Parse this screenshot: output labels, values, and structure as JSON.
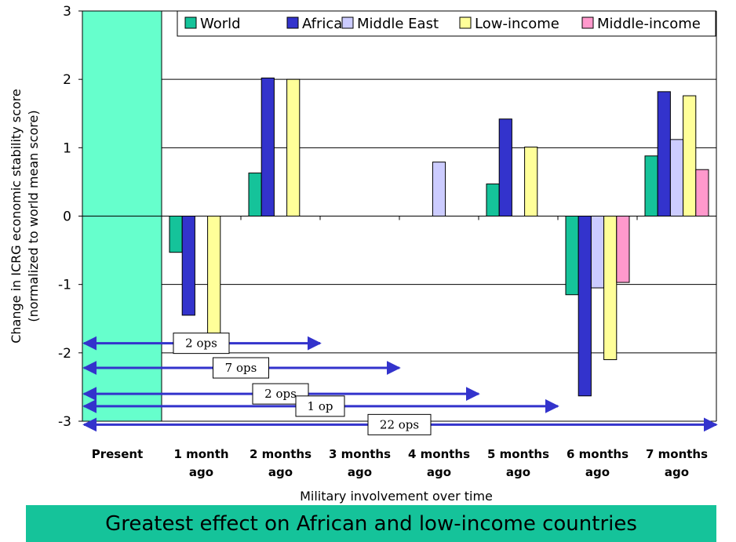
{
  "chart_data": {
    "type": "bar",
    "title": "",
    "xlabel": "Military involvement over time",
    "ylabel": "Change in ICRG economic stability score (normalized to world mean score)",
    "ylabel_lines": [
      "Change in ICRG economic stability score",
      "(normalized to world mean score)"
    ],
    "ylim": [
      -3,
      3
    ],
    "yticks": [
      "3",
      "2",
      "1",
      "0",
      "-1",
      "-2",
      "-3"
    ],
    "grid": true,
    "legend_position": "top",
    "categories": [
      "Present",
      "1 month ago",
      "2 months ago",
      "3 months ago",
      "4 months ago",
      "5 months ago",
      "6 months ago",
      "7 months ago"
    ],
    "category_lines": [
      [
        "Present"
      ],
      [
        "1 month",
        "ago"
      ],
      [
        "2 months",
        "ago"
      ],
      [
        "3 months",
        "ago"
      ],
      [
        "4 months",
        "ago"
      ],
      [
        "5 months",
        "ago"
      ],
      [
        "6 months",
        "ago"
      ],
      [
        "7 months",
        "ago"
      ]
    ],
    "present_highlight_color": "#66ffcc",
    "series": [
      {
        "name": "World",
        "color": "#15c39a",
        "values": [
          null,
          -0.53,
          0.63,
          null,
          null,
          0.47,
          -1.15,
          0.88
        ]
      },
      {
        "name": "Africa",
        "color": "#3333cc",
        "values": [
          null,
          -1.45,
          2.02,
          null,
          null,
          1.42,
          -2.63,
          1.82
        ]
      },
      {
        "name": "Middle East",
        "color": "#ccccff",
        "values": [
          null,
          null,
          null,
          null,
          0.79,
          null,
          -1.05,
          1.12
        ]
      },
      {
        "name": "Low-income",
        "color": "#ffff99",
        "values": [
          null,
          -1.75,
          2.0,
          null,
          null,
          1.01,
          -2.1,
          1.76
        ]
      },
      {
        "name": "Middle-income",
        "color": "#ff99cc",
        "values": [
          null,
          null,
          null,
          null,
          null,
          null,
          -0.97,
          0.68
        ]
      }
    ],
    "annotations": [
      {
        "label": "2 ops",
        "y": -1.86,
        "end_category": 3
      },
      {
        "label": "7 ops",
        "y": -2.22,
        "end_category": 4
      },
      {
        "label": "2 ops",
        "y": -2.6,
        "end_category": 5
      },
      {
        "label": "1 op",
        "y": -2.78,
        "end_category": 6
      },
      {
        "label": "22 ops",
        "y": -3.05,
        "end_category": 8
      }
    ],
    "arrow_color": "#3333cc"
  },
  "caption": "Greatest effect on African and low-income countries"
}
